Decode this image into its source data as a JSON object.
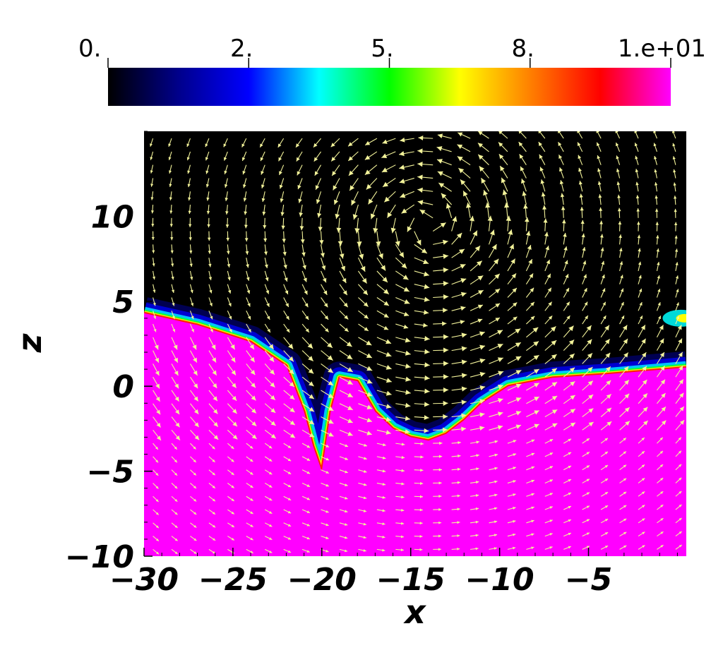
{
  "chart_data": {
    "type": "heatmap",
    "title": "",
    "xlabel": "x",
    "ylabel": "z",
    "xlim": [
      -30,
      0.5
    ],
    "ylim": [
      -10,
      15
    ],
    "x_ticks": [
      {
        "value": -30,
        "label": "−30"
      },
      {
        "value": -25,
        "label": "−25"
      },
      {
        "value": -20,
        "label": "−20"
      },
      {
        "value": -15,
        "label": "−15"
      },
      {
        "value": -10,
        "label": "−10"
      },
      {
        "value": -5,
        "label": "−5"
      }
    ],
    "y_ticks": [
      {
        "value": -10,
        "label": "−10"
      },
      {
        "value": -5,
        "label": "−5"
      },
      {
        "value": 0,
        "label": "0"
      },
      {
        "value": 5,
        "label": "5"
      },
      {
        "value": 10,
        "label": "10"
      }
    ],
    "colorbar": {
      "range": [
        0,
        10
      ],
      "ticks": [
        {
          "value": 0,
          "label": "0."
        },
        {
          "value": 2.5,
          "label": "2."
        },
        {
          "value": 5,
          "label": "5."
        },
        {
          "value": 7.5,
          "label": "8."
        },
        {
          "value": 10,
          "label": "1.e+01"
        }
      ],
      "colors": [
        "#000000",
        "#00008b",
        "#0000ff",
        "#00ffff",
        "#00ff00",
        "#ffff00",
        "#ff8000",
        "#ff0000",
        "#ff00ff"
      ]
    },
    "field": {
      "interface_z": [
        [
          -30,
          4.3
        ],
        [
          -27,
          3.6
        ],
        [
          -24,
          2.6
        ],
        [
          -22,
          1.2
        ],
        [
          -21,
          -1.5
        ],
        [
          -20.5,
          -3.5
        ],
        [
          -20,
          -5
        ],
        [
          -19.5,
          -1.5
        ],
        [
          -19,
          0.5
        ],
        [
          -18,
          0.3
        ],
        [
          -17,
          -1.5
        ],
        [
          -16,
          -2.5
        ],
        [
          -15,
          -3
        ],
        [
          -14,
          -3.2
        ],
        [
          -13,
          -2.8
        ],
        [
          -12,
          -2
        ],
        [
          -11,
          -1
        ],
        [
          -9.5,
          0
        ],
        [
          -7,
          0.5
        ],
        [
          -4,
          0.7
        ],
        [
          0.5,
          1.1
        ]
      ],
      "lower_value": 10,
      "upper_value": 0,
      "vortex_center": [
        -14,
        9.5
      ],
      "vortex_rotation": "counterclockwise",
      "arrow_color": "#f3f39a"
    }
  }
}
